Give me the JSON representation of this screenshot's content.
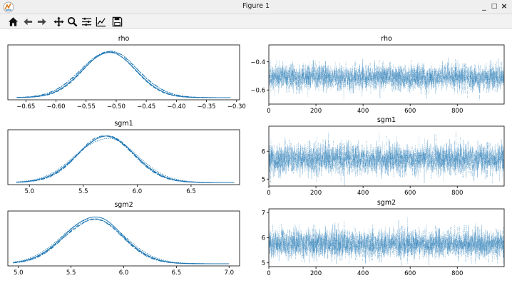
{
  "window": {
    "title": "Figure 1"
  },
  "toolbar": {
    "items": [
      {
        "name": "home-icon"
      },
      {
        "name": "back-arrow-icon"
      },
      {
        "name": "forward-arrow-icon"
      },
      {
        "name": "pan-icon"
      },
      {
        "name": "zoom-icon"
      },
      {
        "name": "subplots-icon"
      },
      {
        "name": "edit-axis-icon"
      },
      {
        "name": "save-icon"
      }
    ]
  },
  "colors": {
    "line": "#1f77b4",
    "axis": "#000000"
  },
  "chart_data": [
    {
      "type": "line",
      "title": "rho",
      "xlim": [
        -0.68,
        -0.295
      ],
      "xticks": [
        -0.65,
        -0.6,
        -0.55,
        -0.5,
        -0.45,
        -0.4,
        -0.35,
        -0.3
      ],
      "xtick_labels": [
        "−0.65",
        "−0.60",
        "−0.55",
        "−0.50",
        "−0.45",
        "−0.40",
        "−0.35",
        "−0.30"
      ],
      "density": {
        "mean": -0.51,
        "sd": 0.045,
        "range": [
          -0.665,
          -0.31
        ]
      }
    },
    {
      "type": "line",
      "title": "rho",
      "xlim": [
        0,
        999
      ],
      "ylim": [
        -0.7,
        -0.28
      ],
      "xticks": [
        0,
        200,
        400,
        600,
        800
      ],
      "xtick_labels": [
        "0",
        "200",
        "400",
        "600",
        "800"
      ],
      "yticks": [
        -0.4,
        -0.6
      ],
      "ytick_labels": [
        "−0.4",
        "−0.6"
      ],
      "trace": {
        "mean": -0.51,
        "sd": 0.045,
        "n": 1000
      }
    },
    {
      "type": "line",
      "title": "sgm1",
      "xlim": [
        4.8,
        6.95
      ],
      "xticks": [
        5.0,
        5.5,
        6.0,
        6.5
      ],
      "xtick_labels": [
        "5.0",
        "5.5",
        "6.0",
        "6.5"
      ],
      "density": {
        "mean": 5.72,
        "sd": 0.27,
        "range": [
          4.88,
          6.9
        ]
      }
    },
    {
      "type": "line",
      "title": "sgm1",
      "xlim": [
        0,
        999
      ],
      "ylim": [
        4.75,
        6.9
      ],
      "xticks": [
        0,
        200,
        400,
        600,
        800
      ],
      "xtick_labels": [
        "0",
        "200",
        "400",
        "600",
        "800"
      ],
      "yticks": [
        6,
        5
      ],
      "ytick_labels": [
        "6",
        "5"
      ],
      "trace": {
        "mean": 5.72,
        "sd": 0.27,
        "n": 1000
      }
    },
    {
      "type": "line",
      "title": "sgm2",
      "xlim": [
        4.9,
        7.1
      ],
      "xticks": [
        5.0,
        5.5,
        6.0,
        6.5,
        7.0
      ],
      "xtick_labels": [
        "5.0",
        "5.5",
        "6.0",
        "6.5",
        "7.0"
      ],
      "density": {
        "mean": 5.72,
        "sd": 0.28,
        "range": [
          4.95,
          7.0
        ]
      }
    },
    {
      "type": "line",
      "title": "sgm2",
      "xlim": [
        0,
        999
      ],
      "ylim": [
        4.85,
        7.15
      ],
      "xticks": [
        0,
        200,
        400,
        600,
        800
      ],
      "xtick_labels": [
        "0",
        "200",
        "400",
        "600",
        "800"
      ],
      "yticks": [
        7,
        6,
        5
      ],
      "ytick_labels": [
        "7",
        "6",
        "5"
      ],
      "trace": {
        "mean": 5.75,
        "sd": 0.28,
        "n": 1000
      }
    }
  ]
}
